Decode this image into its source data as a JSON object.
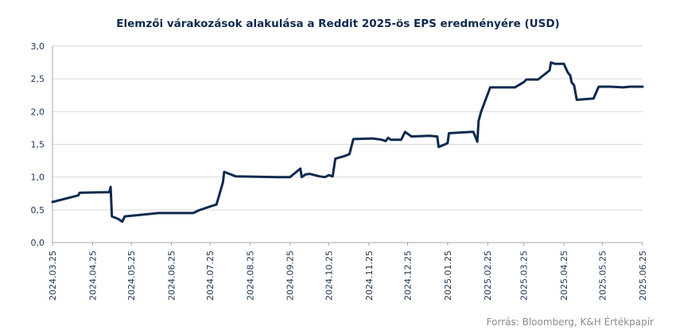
{
  "chart_data": {
    "type": "line",
    "title": "Elemzői várakozások alakulása a Reddit 2025-ös EPS eredményére (USD)",
    "xlabel": "",
    "ylabel": "",
    "ylim": [
      0,
      3.0
    ],
    "y_ticks": [
      "0,0",
      "0,5",
      "1,0",
      "1,5",
      "2,0",
      "2,5",
      "3,0"
    ],
    "x_ticks": [
      "2024.03.25",
      "2024.04.25",
      "2024.05.25",
      "2024.06.25",
      "2024.07.25",
      "2024.08.25",
      "2024.09.25",
      "2024.10.25",
      "2024.11.25",
      "2024.12.25",
      "2025.01.25",
      "2025.02.25",
      "2025.03.25",
      "2025.04.25",
      "2025.05.25",
      "2025.06.25"
    ],
    "x_range": [
      "2024-03-25",
      "2025-06-25"
    ],
    "grid": "horizontal",
    "line_color": "#0d2a4e",
    "series": [
      {
        "points": [
          [
            "2024-03-25",
            0.62
          ],
          [
            "2024-04-14",
            0.72
          ],
          [
            "2024-04-15",
            0.76
          ],
          [
            "2024-05-08",
            0.77
          ],
          [
            "2024-05-09",
            0.85
          ],
          [
            "2024-05-10",
            0.4
          ],
          [
            "2024-05-15",
            0.36
          ],
          [
            "2024-05-18",
            0.32
          ],
          [
            "2024-05-20",
            0.4
          ],
          [
            "2024-06-10",
            0.44
          ],
          [
            "2024-06-15",
            0.45
          ],
          [
            "2024-07-12",
            0.45
          ],
          [
            "2024-07-16",
            0.49
          ],
          [
            "2024-07-25",
            0.55
          ],
          [
            "2024-07-30",
            0.58
          ],
          [
            "2024-08-04",
            0.92
          ],
          [
            "2024-08-05",
            1.08
          ],
          [
            "2024-08-14",
            1.01
          ],
          [
            "2024-09-15",
            1.0
          ],
          [
            "2024-09-25",
            1.0
          ],
          [
            "2024-10-03",
            1.13
          ],
          [
            "2024-10-04",
            1.0
          ],
          [
            "2024-10-07",
            1.04
          ],
          [
            "2024-10-10",
            1.05
          ],
          [
            "2024-10-18",
            1.01
          ],
          [
            "2024-10-22",
            1.0
          ],
          [
            "2024-10-25",
            1.03
          ],
          [
            "2024-10-28",
            1.01
          ],
          [
            "2024-10-30",
            1.28
          ],
          [
            "2024-11-06",
            1.32
          ],
          [
            "2024-11-10",
            1.35
          ],
          [
            "2024-11-13",
            1.58
          ],
          [
            "2024-11-28",
            1.59
          ],
          [
            "2024-12-05",
            1.57
          ],
          [
            "2024-12-08",
            1.55
          ],
          [
            "2024-12-10",
            1.6
          ],
          [
            "2024-12-12",
            1.57
          ],
          [
            "2024-12-20",
            1.57
          ],
          [
            "2024-12-23",
            1.69
          ],
          [
            "2024-12-28",
            1.62
          ],
          [
            "2025-01-11",
            1.63
          ],
          [
            "2025-01-17",
            1.62
          ],
          [
            "2025-01-18",
            1.46
          ],
          [
            "2025-01-23",
            1.5
          ],
          [
            "2025-01-25",
            1.52
          ],
          [
            "2025-01-26",
            1.67
          ],
          [
            "2025-02-12",
            1.69
          ],
          [
            "2025-02-14",
            1.69
          ],
          [
            "2025-02-17",
            1.54
          ],
          [
            "2025-02-18",
            1.86
          ],
          [
            "2025-02-20",
            2.0
          ],
          [
            "2025-02-27",
            2.37
          ],
          [
            "2025-03-18",
            2.37
          ],
          [
            "2025-03-25",
            2.45
          ],
          [
            "2025-03-27",
            2.49
          ],
          [
            "2025-04-05",
            2.49
          ],
          [
            "2025-04-14",
            2.63
          ],
          [
            "2025-04-15",
            2.75
          ],
          [
            "2025-04-18",
            2.73
          ],
          [
            "2025-04-25",
            2.73
          ],
          [
            "2025-04-28",
            2.6
          ],
          [
            "2025-04-30",
            2.55
          ],
          [
            "2025-05-01",
            2.45
          ],
          [
            "2025-05-03",
            2.4
          ],
          [
            "2025-05-05",
            2.18
          ],
          [
            "2025-05-18",
            2.2
          ],
          [
            "2025-05-22",
            2.38
          ],
          [
            "2025-05-31",
            2.38
          ],
          [
            "2025-06-10",
            2.37
          ],
          [
            "2025-06-15",
            2.38
          ],
          [
            "2025-06-25",
            2.38
          ]
        ]
      }
    ]
  },
  "source_note": "Forrás: Bloomberg, K&H Értékpapír"
}
